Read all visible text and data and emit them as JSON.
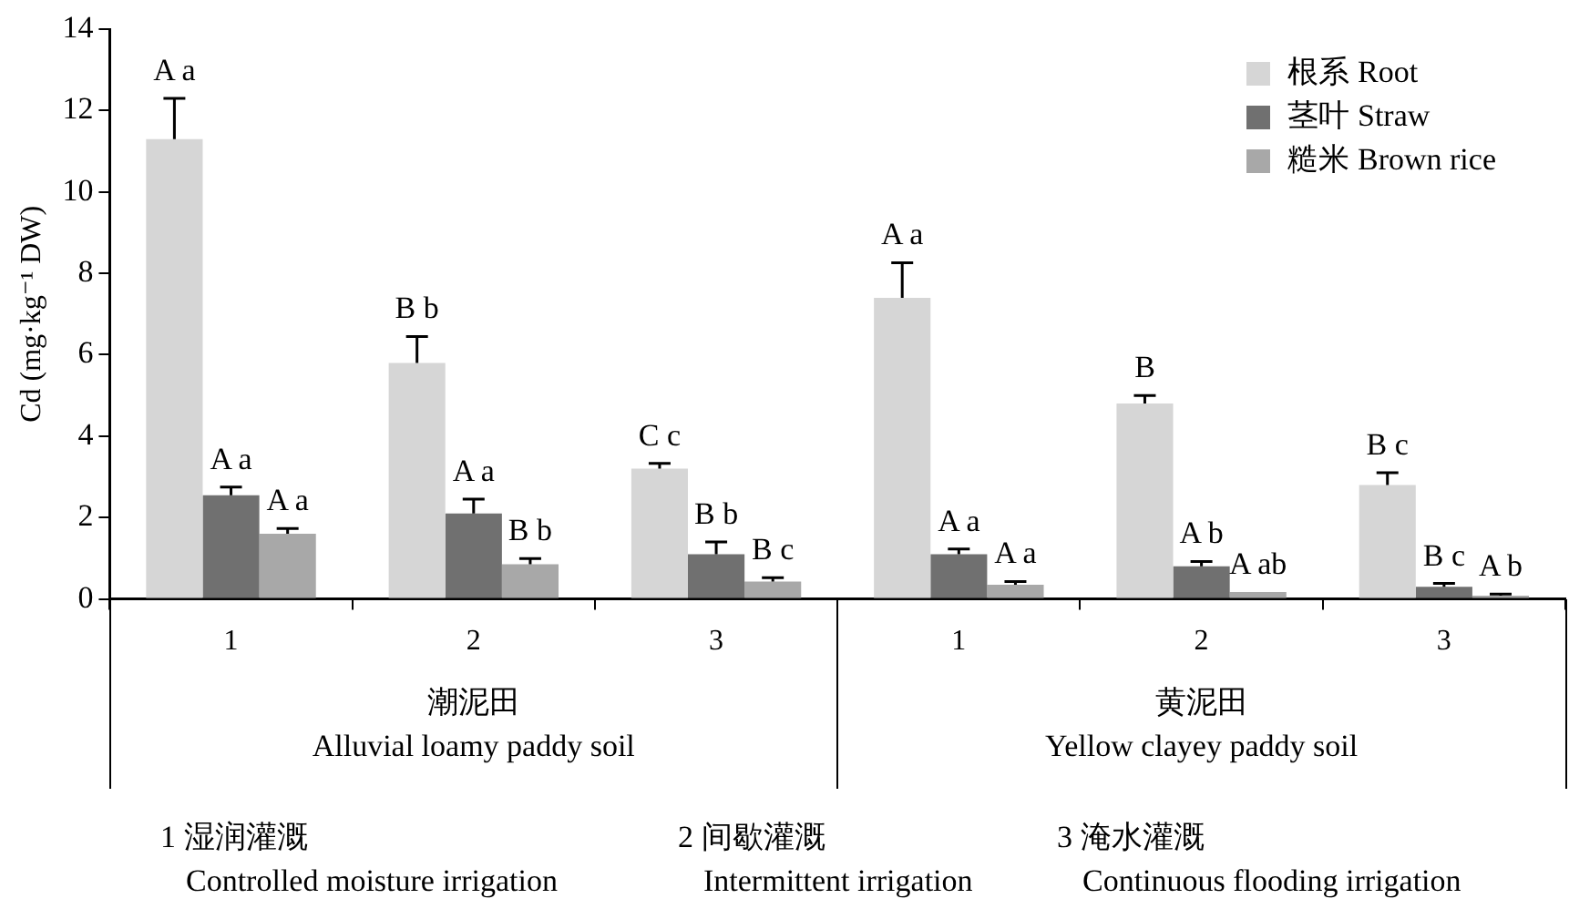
{
  "chart_data": {
    "type": "bar",
    "ylabel": "Cd (mg·kg⁻¹ DW)",
    "categories": [
      "1",
      "2",
      "3",
      "1",
      "2",
      "3"
    ],
    "series": [
      {
        "name": "根系 Root",
        "color": "#d6d6d6",
        "values": [
          11.3,
          5.8,
          3.2,
          7.4,
          4.8,
          2.8
        ],
        "errors": [
          1.0,
          0.65,
          0.13,
          0.86,
          0.2,
          0.3
        ],
        "value_labels": [
          "A a",
          "B b",
          "C c",
          "A a",
          "B",
          "B c"
        ]
      },
      {
        "name": "茎叶 Straw",
        "color": "#707070",
        "values": [
          2.55,
          2.1,
          1.1,
          1.1,
          0.8,
          0.3
        ],
        "errors": [
          0.2,
          0.35,
          0.3,
          0.13,
          0.12,
          0.08
        ],
        "value_labels": [
          "A a",
          "A a",
          "B b",
          "A a",
          "A b",
          "B c"
        ]
      },
      {
        "name": "糙米 Brown rice",
        "color": "#a8a8a8",
        "values": [
          1.6,
          0.85,
          0.43,
          0.35,
          0.17,
          0.08
        ],
        "errors": [
          0.13,
          0.14,
          0.09,
          0.08,
          null,
          0.04
        ],
        "value_labels": [
          "A a",
          "B b",
          "B c",
          "A a",
          "A ab",
          "A b"
        ]
      }
    ],
    "ylim": [
      0,
      14
    ],
    "yticks": [
      0,
      2,
      4,
      6,
      8,
      10,
      12,
      14
    ],
    "grid": false,
    "legend": "top right",
    "annotations": [
      "潮泥田",
      "Alluvial loamy paddy soil",
      "黄泥田",
      "Yellow clayey paddy soil",
      "1 湿润灌溉",
      "Controlled moisture irrigation",
      "2 间歇灌溉",
      "Intermittent irrigation",
      "3 淹水灌溉",
      "Continuous flooding irrigation"
    ]
  }
}
